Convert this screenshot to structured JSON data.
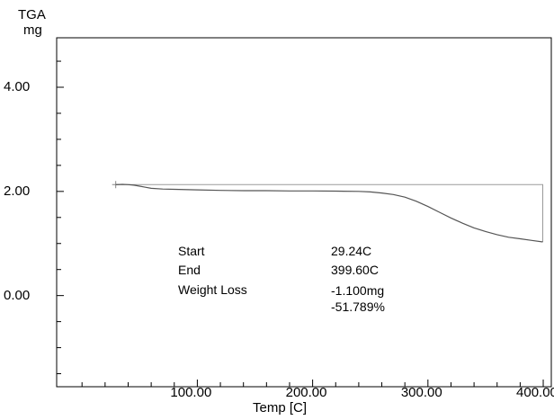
{
  "chart_data": {
    "type": "line",
    "instrument_label": "TGA",
    "ylabel": "mg",
    "xlabel": "Temp  [C]",
    "xlim": [
      -22.0,
      407.0
    ],
    "ylim": [
      -1.75,
      4.95
    ],
    "x_ticks": [
      100,
      200,
      300,
      400
    ],
    "x_tick_labels": [
      "100.00",
      "200.00",
      "300.00",
      "400.00"
    ],
    "y_ticks": [
      0,
      2,
      4
    ],
    "y_tick_labels": [
      "0.00",
      "2.00",
      "4.00"
    ],
    "grid": false,
    "series": [
      {
        "color": "#555555",
        "x": [
          29.24,
          35,
          40,
          45,
          50,
          55,
          60,
          70,
          80,
          100,
          120,
          140,
          160,
          180,
          200,
          220,
          240,
          250,
          260,
          270,
          280,
          290,
          300,
          310,
          320,
          330,
          340,
          350,
          360,
          370,
          380,
          390,
          399.6
        ],
        "y": [
          2.13,
          2.135,
          2.13,
          2.12,
          2.1,
          2.08,
          2.06,
          2.045,
          2.04,
          2.03,
          2.02,
          2.015,
          2.015,
          2.01,
          2.01,
          2.005,
          2.0,
          1.99,
          1.97,
          1.94,
          1.89,
          1.81,
          1.71,
          1.6,
          1.49,
          1.39,
          1.3,
          1.23,
          1.17,
          1.12,
          1.09,
          1.06,
          1.03
        ]
      }
    ],
    "weight_loss_bracket": {
      "start_x": 29.24,
      "end_x": 399.6,
      "top_y": 2.13,
      "bottom_y": 1.03
    },
    "annotations": [
      {
        "label": "Start",
        "value": "29.24C"
      },
      {
        "label": "End",
        "value": "399.60C"
      },
      {
        "label": "Weight Loss",
        "value": "-1.100mg",
        "value2": "-51.789%"
      }
    ]
  }
}
